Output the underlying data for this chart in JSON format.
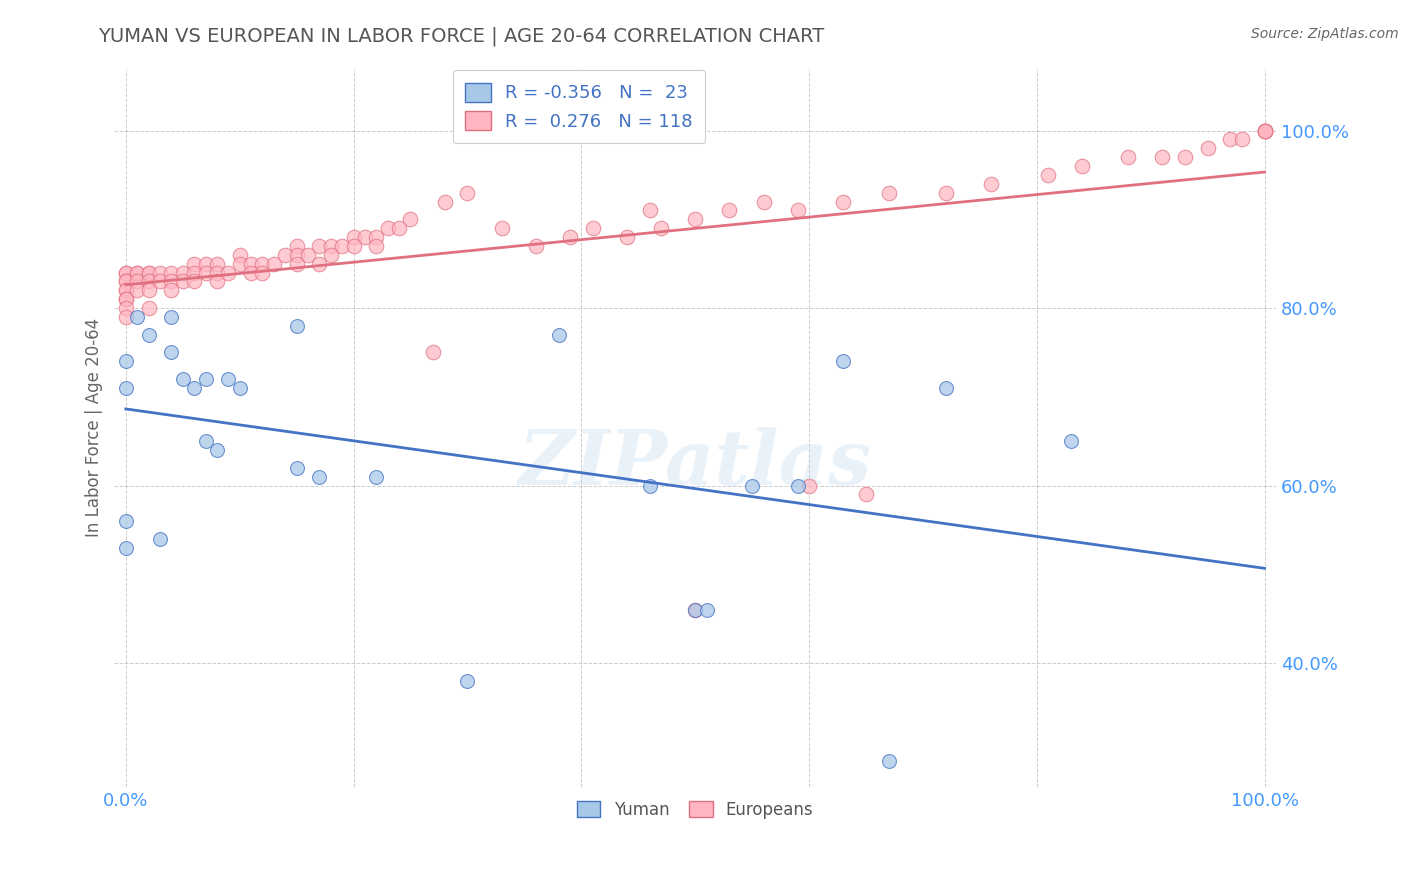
{
  "title": "YUMAN VS EUROPEAN IN LABOR FORCE | AGE 20-64 CORRELATION CHART",
  "source": "Source: ZipAtlas.com",
  "ylabel": "In Labor Force | Age 20-64",
  "xlim": [
    -0.01,
    1.01
  ],
  "ylim": [
    0.26,
    1.07
  ],
  "x_ticks": [
    0.0,
    0.2,
    0.4,
    0.6,
    0.8,
    1.0
  ],
  "y_ticks": [
    0.4,
    0.6,
    0.8,
    1.0
  ],
  "yuman_color": "#a8c8e8",
  "european_color": "#ffb6c1",
  "line_yuman_color": "#4472c4",
  "line_european_color": "#e07080",
  "background_color": "#ffffff",
  "yuman_x": [
    0.0,
    0.0,
    0.0,
    0.0,
    0.01,
    0.02,
    0.03,
    0.04,
    0.04,
    0.05,
    0.06,
    0.07,
    0.07,
    0.08,
    0.09,
    0.1,
    0.15,
    0.15,
    0.17,
    0.22,
    0.3,
    0.38,
    0.46,
    0.5,
    0.51,
    0.55,
    0.59,
    0.63,
    0.67,
    0.72,
    0.83
  ],
  "yuman_y": [
    0.74,
    0.71,
    0.56,
    0.53,
    0.79,
    0.77,
    0.54,
    0.79,
    0.75,
    0.72,
    0.71,
    0.72,
    0.65,
    0.64,
    0.72,
    0.71,
    0.78,
    0.62,
    0.61,
    0.61,
    0.38,
    0.77,
    0.6,
    0.46,
    0.46,
    0.6,
    0.6,
    0.74,
    0.29,
    0.71,
    0.65
  ],
  "european_x": [
    0.0,
    0.0,
    0.0,
    0.0,
    0.0,
    0.0,
    0.0,
    0.0,
    0.0,
    0.0,
    0.01,
    0.01,
    0.01,
    0.01,
    0.02,
    0.02,
    0.02,
    0.02,
    0.02,
    0.03,
    0.03,
    0.04,
    0.04,
    0.04,
    0.05,
    0.05,
    0.06,
    0.06,
    0.06,
    0.07,
    0.07,
    0.08,
    0.08,
    0.08,
    0.09,
    0.1,
    0.1,
    0.11,
    0.11,
    0.12,
    0.12,
    0.13,
    0.14,
    0.15,
    0.15,
    0.15,
    0.16,
    0.17,
    0.17,
    0.18,
    0.18,
    0.19,
    0.2,
    0.2,
    0.21,
    0.22,
    0.22,
    0.23,
    0.24,
    0.25,
    0.27,
    0.28,
    0.3,
    0.33,
    0.36,
    0.39,
    0.41,
    0.44,
    0.46,
    0.47,
    0.5,
    0.5,
    0.53,
    0.56,
    0.59,
    0.6,
    0.63,
    0.65,
    0.67,
    0.72,
    0.76,
    0.81,
    0.84,
    0.88,
    0.91,
    0.93,
    0.95,
    0.97,
    0.98,
    1.0,
    1.0,
    1.0,
    1.0
  ],
  "european_y": [
    0.84,
    0.84,
    0.83,
    0.83,
    0.82,
    0.82,
    0.81,
    0.81,
    0.8,
    0.79,
    0.84,
    0.84,
    0.83,
    0.82,
    0.84,
    0.84,
    0.83,
    0.82,
    0.8,
    0.84,
    0.83,
    0.84,
    0.83,
    0.82,
    0.84,
    0.83,
    0.85,
    0.84,
    0.83,
    0.85,
    0.84,
    0.85,
    0.84,
    0.83,
    0.84,
    0.86,
    0.85,
    0.85,
    0.84,
    0.85,
    0.84,
    0.85,
    0.86,
    0.87,
    0.86,
    0.85,
    0.86,
    0.87,
    0.85,
    0.87,
    0.86,
    0.87,
    0.88,
    0.87,
    0.88,
    0.88,
    0.87,
    0.89,
    0.89,
    0.9,
    0.75,
    0.92,
    0.93,
    0.89,
    0.87,
    0.88,
    0.89,
    0.88,
    0.91,
    0.89,
    0.46,
    0.9,
    0.91,
    0.92,
    0.91,
    0.6,
    0.92,
    0.59,
    0.93,
    0.93,
    0.94,
    0.95,
    0.96,
    0.97,
    0.97,
    0.97,
    0.98,
    0.99,
    0.99,
    1.0,
    1.0,
    1.0,
    1.0
  ]
}
